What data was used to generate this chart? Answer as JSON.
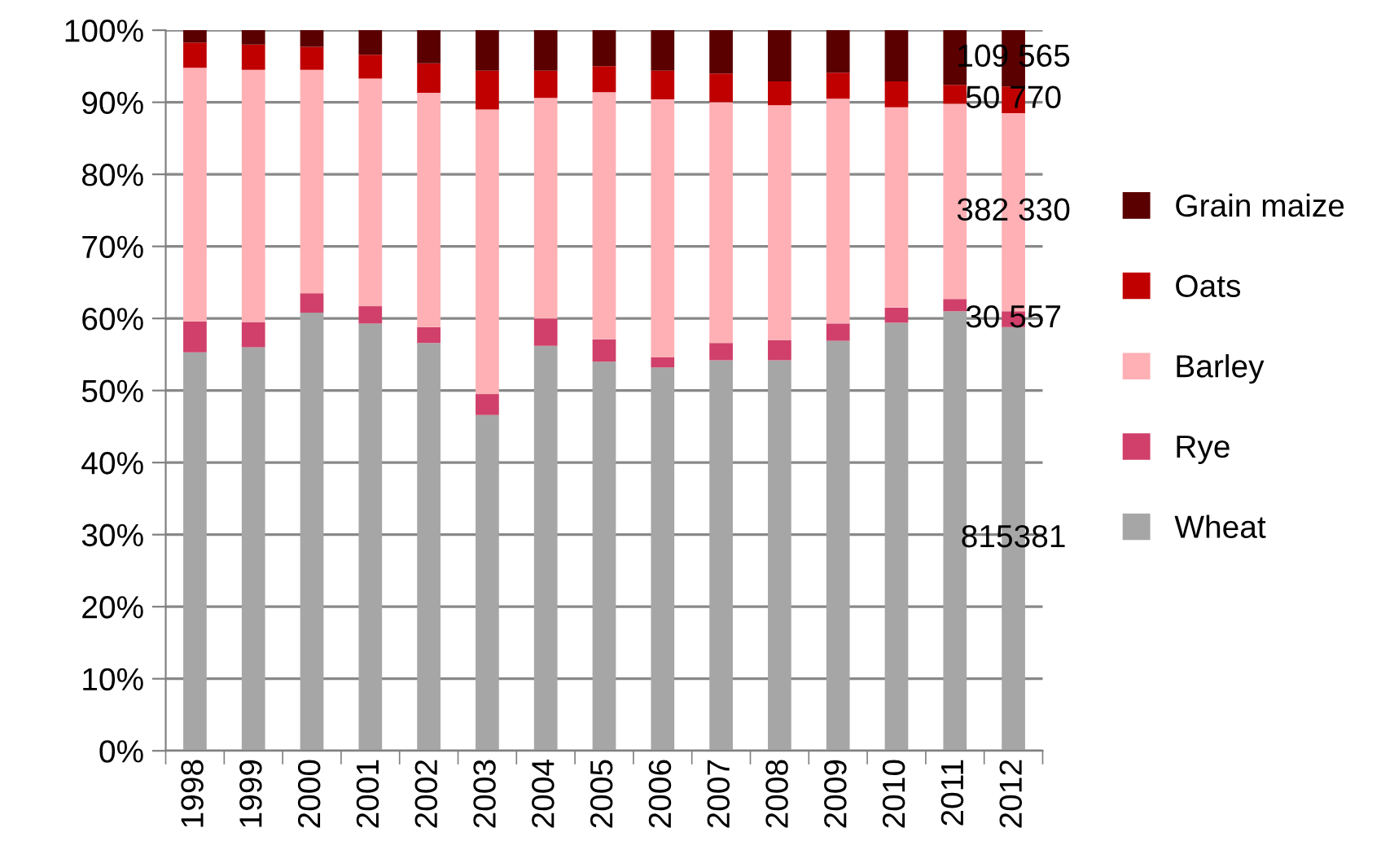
{
  "chart_data": {
    "type": "bar",
    "stacked": true,
    "categories": [
      "1998",
      "1999",
      "2000",
      "2001",
      "2002",
      "2003",
      "2004",
      "2005",
      "2006",
      "2007",
      "2008",
      "2009",
      "2010",
      "2011",
      "2012"
    ],
    "series": [
      {
        "name": "Wheat",
        "color": "#a6a6a6",
        "values": [
          55.3,
          56,
          60.8,
          59.3,
          56.6,
          46.6,
          56.2,
          54,
          53.2,
          54.2,
          54.2,
          56.9,
          59.4,
          61,
          58.8
        ]
      },
      {
        "name": "Rye",
        "color": "#d0406a",
        "values": [
          4.3,
          3.5,
          2.7,
          2.4,
          2.2,
          2.9,
          3.8,
          3.1,
          1.4,
          2.4,
          2.8,
          2.4,
          2.1,
          1.7,
          2.2
        ]
      },
      {
        "name": "Barley",
        "color": "#ffb0b5",
        "values": [
          35.2,
          35,
          31,
          31.6,
          32.5,
          39.5,
          30.6,
          34.3,
          35.8,
          33.4,
          32.6,
          31.2,
          27.8,
          27.1,
          27.5
        ]
      },
      {
        "name": "Oats",
        "color": "#c00000",
        "values": [
          3.5,
          3.5,
          3.2,
          3.3,
          4.1,
          5.4,
          3.8,
          3.6,
          4,
          4,
          3.3,
          3.6,
          3.6,
          2.6,
          3.7
        ]
      },
      {
        "name": "Grain maize",
        "color": "#5a0000",
        "values": [
          1.7,
          2,
          2.3,
          3.4,
          4.6,
          5.6,
          5.6,
          5,
          5.6,
          6,
          7.1,
          5.9,
          7.1,
          7.6,
          7.8
        ]
      }
    ],
    "ylim": [
      0,
      100
    ],
    "yticks": [
      {
        "value": 0,
        "label": "0%"
      },
      {
        "value": 10,
        "label": "10%"
      },
      {
        "value": 20,
        "label": "20%"
      },
      {
        "value": 30,
        "label": "30%"
      },
      {
        "value": 40,
        "label": "40%"
      },
      {
        "value": 50,
        "label": "50%"
      },
      {
        "value": 60,
        "label": "60%"
      },
      {
        "value": 70,
        "label": "70%"
      },
      {
        "value": 80,
        "label": "80%"
      },
      {
        "value": 90,
        "label": "90%"
      },
      {
        "value": 100,
        "label": "100%"
      }
    ],
    "grid": "y",
    "legend": "right",
    "annotations": [
      "815381",
      "30 557",
      "382 330",
      "50 770",
      "109 565"
    ]
  }
}
